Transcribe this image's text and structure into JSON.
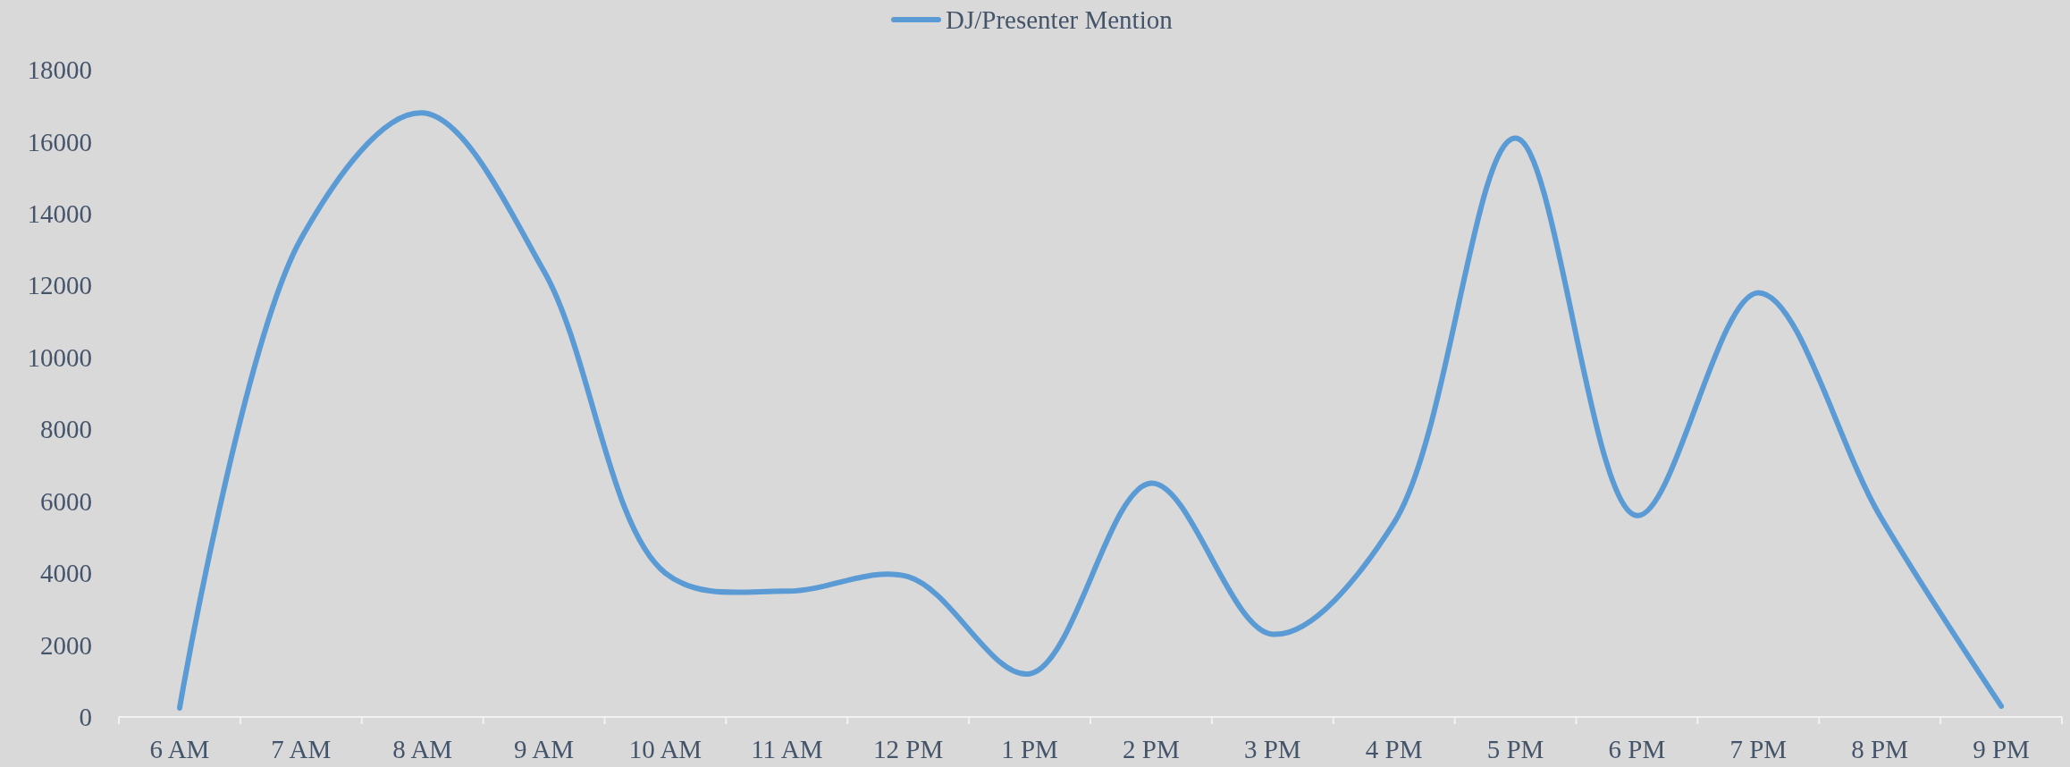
{
  "chart_data": {
    "type": "line",
    "categories": [
      "6 AM",
      "7 AM",
      "8 AM",
      "9 AM",
      "10 AM",
      "11 AM",
      "12 PM",
      "1 PM",
      "2 PM",
      "3 PM",
      "4 PM",
      "5 PM",
      "6 PM",
      "7 PM",
      "8 PM",
      "9 PM"
    ],
    "series": [
      {
        "name": "DJ/Presenter Mention",
        "color": "#5b9bd5",
        "values": [
          250,
          13300,
          16800,
          12400,
          4000,
          3500,
          3900,
          1200,
          6500,
          2300,
          5400,
          16100,
          5600,
          11800,
          5600,
          300
        ]
      }
    ],
    "ylim": [
      0,
      18000
    ],
    "yticks": [
      0,
      2000,
      4000,
      6000,
      8000,
      10000,
      12000,
      14000,
      16000,
      18000
    ],
    "grid": false,
    "legend": "top",
    "line_style": "solid",
    "marker": "none"
  }
}
